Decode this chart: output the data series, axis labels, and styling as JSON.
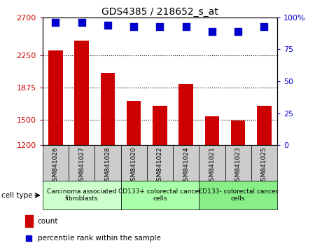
{
  "title": "GDS4385 / 218652_s_at",
  "samples": [
    "GSM841026",
    "GSM841027",
    "GSM841028",
    "GSM841020",
    "GSM841022",
    "GSM841024",
    "GSM841021",
    "GSM841023",
    "GSM841025"
  ],
  "counts": [
    2310,
    2430,
    2050,
    1720,
    1660,
    1920,
    1540,
    1490,
    1660
  ],
  "percentiles": [
    96,
    96,
    94,
    93,
    93,
    93,
    89,
    89,
    93
  ],
  "ylim_left": [
    1200,
    2700
  ],
  "ylim_right": [
    0,
    100
  ],
  "yticks_left": [
    1200,
    1500,
    1875,
    2250,
    2700
  ],
  "yticks_right": [
    0,
    25,
    50,
    75,
    100
  ],
  "ytick_labels_left": [
    "1200",
    "1500",
    "1875",
    "2250",
    "2700"
  ],
  "ytick_labels_right": [
    "0",
    "25",
    "50",
    "75",
    "100%"
  ],
  "grid_lines": [
    1500,
    1875,
    2250
  ],
  "bar_color": "#cc0000",
  "dot_color": "#0000cc",
  "groups": [
    {
      "label": "Carcinoma associated\nfibroblasts",
      "start": 0,
      "end": 3,
      "color": "#ccffcc"
    },
    {
      "label": "CD133+ colorectal cancer\ncells",
      "start": 3,
      "end": 6,
      "color": "#aaffaa"
    },
    {
      "label": "CD133- colorectal cancer\ncells",
      "start": 6,
      "end": 9,
      "color": "#88ee88"
    }
  ],
  "legend_count_label": "count",
  "legend_pct_label": "percentile rank within the sample",
  "cell_type_label": "cell type",
  "bar_color_left": "#cc0000",
  "dot_color_blue": "#0000cc",
  "tick_bg_color": "#cccccc",
  "title_fontsize": 10,
  "axis_fontsize": 8,
  "sample_fontsize": 6.5,
  "group_fontsize": 6.5,
  "legend_fontsize": 7.5
}
